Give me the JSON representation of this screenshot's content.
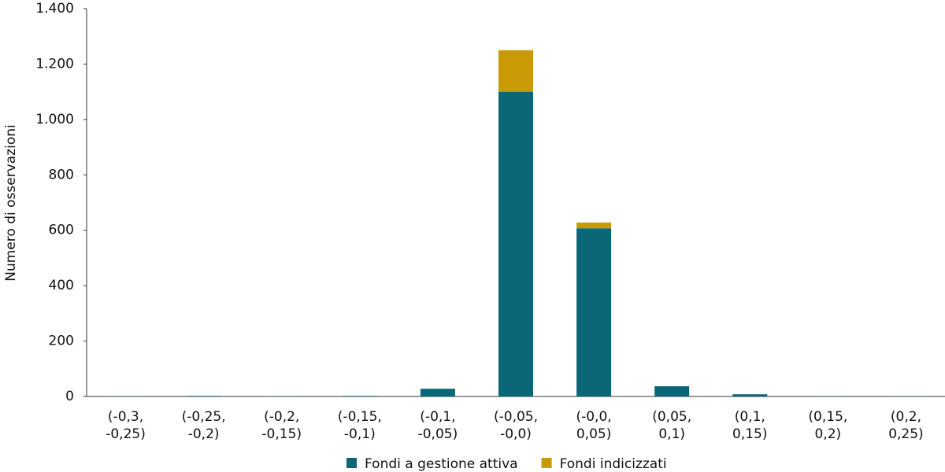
{
  "chart_data": {
    "type": "bar",
    "stacked": true,
    "y_label": "Numero di osservazioni",
    "categories": [
      "(-0,3, -0,25)",
      "(-0,25, -0,2)",
      "(-0,2, -0,15)",
      "(-0,15, -0,1)",
      "(-0,1, -0,05)",
      "(-0,05, -0,0)",
      "(-0,0, 0,05)",
      "(0,05, 0,1)",
      "(0,1, 0,15)",
      "(0,15, 0,2)",
      "(0,2, 0,25)"
    ],
    "series": [
      {
        "name": "Fondi a gestione attiva",
        "color": "#0b6678",
        "values": [
          1,
          2,
          1,
          2,
          28,
          1100,
          607,
          37,
          8,
          1,
          1
        ]
      },
      {
        "name": "Fondi indicizzati",
        "color": "#c99a06",
        "values": [
          0,
          0,
          0,
          0,
          0,
          150,
          21,
          0,
          0,
          0,
          0
        ]
      }
    ],
    "ylim": [
      0,
      1400
    ],
    "yticks": [
      0,
      200,
      400,
      600,
      800,
      {
        "value": 1000,
        "label": "1.000"
      },
      {
        "value": 1200,
        "label": "1.200"
      },
      {
        "value": 1400,
        "label": "1.400"
      }
    ],
    "grid": false,
    "legend": "bottom"
  }
}
